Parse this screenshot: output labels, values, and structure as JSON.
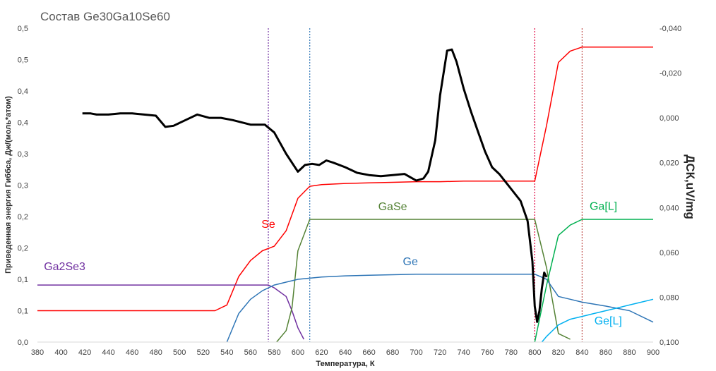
{
  "chart_data": {
    "type": "line",
    "title": "Состав Ge30Ga10Se60",
    "xlabel": "Температура, К",
    "ylabel": "Приведенная энергия Гиббса, Дж/(моль*атом)",
    "y2label": "ДСК,uV/mg",
    "xlim": [
      380,
      900
    ],
    "ylim": [
      0,
      0.55
    ],
    "y2lim": [
      -0.04,
      0.1
    ],
    "y2_inverted": true,
    "grid": false,
    "x_ticks": [
      "380",
      "400",
      "420",
      "440",
      "460",
      "480",
      "500",
      "520",
      "540",
      "560",
      "580",
      "600",
      "620",
      "640",
      "660",
      "680",
      "700",
      "720",
      "740",
      "760",
      "780",
      "800",
      "820",
      "840",
      "860",
      "880",
      "900"
    ],
    "y_ticks": [
      {
        "v": 0.0,
        "label": "0,0"
      },
      {
        "v": 0.055,
        "label": "0,1"
      },
      {
        "v": 0.11,
        "label": "0,1"
      },
      {
        "v": 0.165,
        "label": "0,2"
      },
      {
        "v": 0.22,
        "label": "0,2"
      },
      {
        "v": 0.275,
        "label": "0,3"
      },
      {
        "v": 0.33,
        "label": "0,3"
      },
      {
        "v": 0.385,
        "label": "0,4"
      },
      {
        "v": 0.44,
        "label": "0,4"
      },
      {
        "v": 0.495,
        "label": "0,5"
      },
      {
        "v": 0.55,
        "label": "0,5"
      }
    ],
    "y2_ticks": [
      {
        "v": -0.04,
        "label": "-0,040"
      },
      {
        "v": -0.02,
        "label": "-0,020"
      },
      {
        "v": 0.0,
        "label": "0,000"
      },
      {
        "v": 0.02,
        "label": "0,020"
      },
      {
        "v": 0.04,
        "label": "0,040"
      },
      {
        "v": 0.06,
        "label": "0,060"
      },
      {
        "v": 0.08,
        "label": "0,080"
      },
      {
        "v": 0.1,
        "label": "0,100"
      }
    ],
    "vlines": [
      {
        "x": 575,
        "color": "#7030a0"
      },
      {
        "x": 610,
        "color": "#2e75b6"
      },
      {
        "x": 800,
        "color": "#e0003c"
      },
      {
        "x": 840,
        "color": "#c0504d"
      }
    ],
    "series": [
      {
        "name": "Se",
        "color": "#ff0000",
        "axis": "left",
        "x": [
          380,
          530,
          540,
          550,
          560,
          570,
          580,
          590,
          600,
          610,
          620,
          640,
          660,
          680,
          700,
          720,
          740,
          760,
          780,
          800,
          810,
          820,
          830,
          840,
          860,
          880,
          900
        ],
        "y": [
          0.055,
          0.055,
          0.065,
          0.115,
          0.143,
          0.16,
          0.168,
          0.195,
          0.252,
          0.273,
          0.276,
          0.278,
          0.279,
          0.28,
          0.281,
          0.281,
          0.282,
          0.282,
          0.282,
          0.282,
          0.38,
          0.49,
          0.51,
          0.517,
          0.517,
          0.517,
          0.517
        ]
      },
      {
        "name": "Ga2Se3",
        "color": "#7030a0",
        "axis": "left",
        "x": [
          380,
          570,
          575,
          580,
          590,
          595,
          600,
          605
        ],
        "y": [
          0.1,
          0.1,
          0.1,
          0.095,
          0.08,
          0.055,
          0.025,
          0.005
        ]
      },
      {
        "name": "GaSe",
        "color": "#548235",
        "axis": "left",
        "x": [
          582,
          590,
          595,
          600,
          610,
          620,
          680,
          740,
          780,
          800,
          810,
          820,
          830
        ],
        "y": [
          0.0,
          0.02,
          0.06,
          0.16,
          0.215,
          0.215,
          0.215,
          0.215,
          0.215,
          0.215,
          0.13,
          0.015,
          0.005
        ]
      },
      {
        "name": "Ge",
        "color": "#2e75b6",
        "axis": "left",
        "x": [
          540,
          550,
          560,
          570,
          580,
          590,
          600,
          610,
          620,
          640,
          660,
          680,
          700,
          720,
          740,
          760,
          780,
          800,
          810,
          820,
          830,
          840,
          860,
          880,
          900
        ],
        "y": [
          0.0,
          0.05,
          0.075,
          0.09,
          0.1,
          0.105,
          0.11,
          0.112,
          0.114,
          0.116,
          0.117,
          0.118,
          0.119,
          0.119,
          0.119,
          0.119,
          0.119,
          0.119,
          0.11,
          0.08,
          0.075,
          0.07,
          0.063,
          0.055,
          0.035
        ]
      },
      {
        "name": "Ga[L]",
        "color": "#00b050",
        "axis": "left",
        "x": [
          800,
          810,
          820,
          830,
          840,
          860,
          880,
          900
        ],
        "y": [
          0.0,
          0.1,
          0.187,
          0.205,
          0.215,
          0.215,
          0.215,
          0.215
        ]
      },
      {
        "name": "Ge[L]",
        "color": "#00b0f0",
        "axis": "left",
        "x": [
          806,
          810,
          820,
          830,
          840,
          850,
          860,
          870,
          880,
          890,
          900
        ],
        "y": [
          0.0,
          0.01,
          0.03,
          0.04,
          0.045,
          0.05,
          0.055,
          0.06,
          0.065,
          0.07,
          0.075
        ]
      },
      {
        "name": "",
        "color": "#000000",
        "axis": "right",
        "width": 3,
        "x": [
          418,
          425,
          430,
          440,
          450,
          460,
          470,
          480,
          488,
          495,
          505,
          515,
          525,
          535,
          545,
          560,
          572,
          580,
          590,
          600,
          606,
          612,
          618,
          624,
          630,
          640,
          650,
          660,
          670,
          680,
          690,
          700,
          706,
          710,
          716,
          720,
          726,
          730,
          734,
          740,
          746,
          752,
          758,
          764,
          770,
          776,
          782,
          788,
          794,
          798,
          800,
          802,
          804,
          806,
          808,
          810
        ],
        "y": [
          -0.002,
          -0.002,
          -0.0015,
          -0.0015,
          -0.002,
          -0.002,
          -0.0015,
          -0.001,
          0.004,
          0.0035,
          0.001,
          -0.0015,
          0.0,
          0.0,
          0.001,
          0.003,
          0.003,
          0.0065,
          0.016,
          0.024,
          0.021,
          0.0205,
          0.021,
          0.019,
          0.02,
          0.022,
          0.0245,
          0.0255,
          0.026,
          0.0255,
          0.025,
          0.028,
          0.027,
          0.024,
          0.01,
          -0.01,
          -0.03,
          -0.0305,
          -0.025,
          -0.013,
          -0.003,
          0.006,
          0.015,
          0.022,
          0.025,
          0.029,
          0.033,
          0.037,
          0.046,
          0.064,
          0.084,
          0.091,
          0.086,
          0.076,
          0.069,
          0.071
        ]
      }
    ],
    "labels": [
      {
        "text": "Se",
        "x": 575,
        "y": 0.2,
        "color": "#ff0000"
      },
      {
        "text": "Ga2Se3",
        "x": 403,
        "y": 0.126,
        "color": "#7030a0"
      },
      {
        "text": "GaSe",
        "x": 680,
        "y": 0.231,
        "color": "#548235"
      },
      {
        "text": "Ge",
        "x": 695,
        "y": 0.135,
        "color": "#2e75b6"
      },
      {
        "text": "Ga[L]",
        "x": 858,
        "y": 0.232,
        "color": "#00b050"
      },
      {
        "text": "Ge[L]",
        "x": 862,
        "y": 0.031,
        "color": "#00b0f0"
      }
    ]
  }
}
